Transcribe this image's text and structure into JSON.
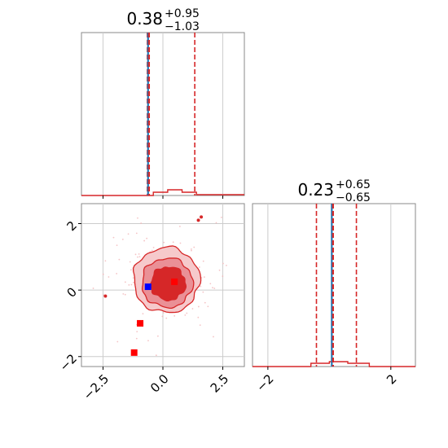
{
  "chart_data": {
    "type": "corner",
    "parameters": [
      {
        "title": {
          "median": "0.38",
          "plus": "+0.95",
          "minus": "−1.03"
        },
        "range": [
          -3.4,
          3.4
        ],
        "ticks": [
          -2.5,
          0.0,
          2.5
        ],
        "tick_labels": [
          "−2.5",
          "0.0",
          "2.5"
        ],
        "quantiles": [
          -0.65,
          1.33
        ],
        "truth_lines": [
          -0.62,
          -0.58
        ],
        "histogram_bins": [
          {
            "x0": -3.4,
            "x1": -0.4,
            "height": 0.0
          },
          {
            "x0": -0.4,
            "x1": 0.2,
            "height": 0.02
          },
          {
            "x0": 0.2,
            "x1": 0.8,
            "height": 0.035
          },
          {
            "x0": 0.8,
            "x1": 1.4,
            "height": 0.02
          },
          {
            "x0": 1.4,
            "x1": 3.4,
            "height": 0.005
          }
        ]
      },
      {
        "title": {
          "median": "0.23",
          "plus": "+0.65",
          "minus": "−0.65"
        },
        "range": [
          -2.5,
          2.8
        ],
        "ticks": [
          -2.0,
          2.0
        ],
        "tick_labels": [
          "−2",
          "2"
        ],
        "quantiles": [
          -0.42,
          0.88
        ],
        "truth_lines": [
          0.08,
          0.12
        ],
        "histogram_bins": [
          {
            "x0": -2.5,
            "x1": -0.6,
            "height": 0.0
          },
          {
            "x0": -0.6,
            "x1": 0.0,
            "height": 0.02
          },
          {
            "x0": 0.0,
            "x1": 0.6,
            "height": 0.03
          },
          {
            "x0": 0.6,
            "x1": 1.3,
            "height": 0.02
          },
          {
            "x0": 1.3,
            "x1": 2.8,
            "height": 0.0
          }
        ]
      }
    ],
    "joint": {
      "x_range": [
        -3.4,
        3.4
      ],
      "y_range": [
        -2.3,
        2.6
      ],
      "x_ticks": [
        -2.5,
        0.0,
        2.5
      ],
      "x_tick_labels": [
        "−2.5",
        "0.0",
        "2.5"
      ],
      "y_ticks": [
        -2,
        0,
        2
      ],
      "y_tick_labels": [
        "−2",
        "0",
        "2"
      ],
      "contour_levels": [
        {
          "name": "outer",
          "x_sigma": 1.38,
          "y_sigma": 0.98,
          "center": [
            0.15,
            0.3
          ],
          "color": "#f6c9cb"
        },
        {
          "name": "middle",
          "x_sigma": 1.06,
          "y_sigma": 0.74,
          "center": [
            0.18,
            0.22
          ],
          "color": "#ea9096"
        },
        {
          "name": "inner",
          "x_sigma": 0.72,
          "y_sigma": 0.5,
          "center": [
            0.22,
            0.2
          ],
          "color": "#d62728"
        }
      ],
      "markers": [
        {
          "x": -0.62,
          "y": 0.1,
          "color": "#0000ff"
        },
        {
          "x": 0.48,
          "y": 0.25,
          "color": "#ff0000"
        },
        {
          "x": -0.95,
          "y": -1.0,
          "color": "#ff0000"
        },
        {
          "x": -1.2,
          "y": -1.88,
          "color": "#ff0000"
        }
      ],
      "outlier_points": [
        {
          "x": -2.4,
          "y": -0.18
        },
        {
          "x": 1.48,
          "y": 2.1
        },
        {
          "x": 1.6,
          "y": 2.2
        }
      ]
    },
    "colors": {
      "contour": "#d62728",
      "truth": "#1f77b4",
      "quantile": "#d62728",
      "grid": "#cccccc"
    }
  }
}
